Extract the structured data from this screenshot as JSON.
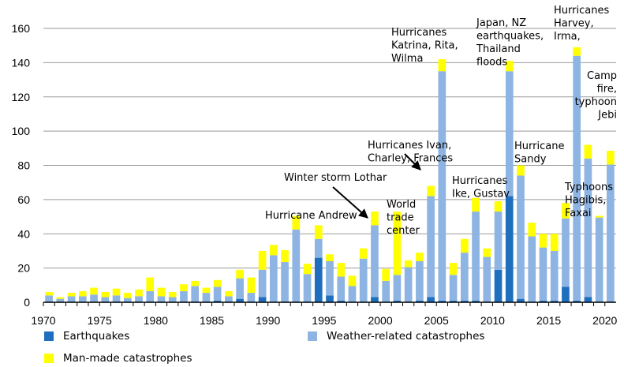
{
  "chart_data": {
    "type": "bar",
    "stacked": true,
    "x": [
      1970,
      1971,
      1972,
      1973,
      1974,
      1975,
      1976,
      1977,
      1978,
      1979,
      1980,
      1981,
      1982,
      1983,
      1984,
      1985,
      1986,
      1987,
      1988,
      1989,
      1990,
      1991,
      1992,
      1993,
      1994,
      1995,
      1996,
      1997,
      1998,
      1999,
      2000,
      2001,
      2002,
      2003,
      2004,
      2005,
      2006,
      2007,
      2008,
      2009,
      2010,
      2011,
      2012,
      2013,
      2014,
      2015,
      2016,
      2017,
      2018,
      2019,
      2020
    ],
    "x_ticks": [
      "1970",
      "1975",
      "1980",
      "1985",
      "1990",
      "1995",
      "2000",
      "2005",
      "2010",
      "2015",
      "2020"
    ],
    "y_ticks": [
      "0",
      "20",
      "40",
      "60",
      "80",
      "100",
      "120",
      "140",
      "160"
    ],
    "ylim": [
      0,
      160
    ],
    "grid": "horizontal",
    "series": [
      {
        "name": "Earthquakes",
        "color": "#1f6fbf",
        "values": [
          0.5,
          0.5,
          0.5,
          0.5,
          0.5,
          0.5,
          0.5,
          0.5,
          0.5,
          0.5,
          0.5,
          0.5,
          0.5,
          0.5,
          0.5,
          1,
          0.5,
          2,
          0.5,
          3,
          0.5,
          0.5,
          0.5,
          0.5,
          26,
          4,
          1,
          0.5,
          0.5,
          3,
          0.5,
          1,
          0.5,
          1,
          3,
          1,
          1,
          1,
          1,
          0.5,
          19,
          62,
          2,
          0.5,
          1,
          1,
          9,
          1,
          3,
          0.5,
          0.5
        ]
      },
      {
        "name": "Weather-related catastrophes",
        "color": "#8db4e2",
        "values": [
          3.5,
          1.5,
          3,
          3,
          4,
          2.5,
          3.5,
          2,
          3,
          6,
          3,
          2.5,
          6,
          9,
          5,
          8,
          3,
          12,
          5,
          16,
          27,
          23,
          42,
          16,
          11,
          20,
          14,
          9,
          25,
          42,
          12,
          15,
          20,
          23,
          59,
          134,
          15,
          28,
          52,
          26,
          34,
          73,
          72,
          38,
          31,
          29,
          40,
          143,
          81,
          49,
          80
        ]
      },
      {
        "name": "Man-made catastrophes",
        "color": "#ffff00",
        "values": [
          2,
          1,
          2,
          3,
          4,
          3,
          4,
          3,
          4,
          8,
          5,
          3,
          4,
          3,
          3,
          4,
          3,
          5,
          9,
          11,
          6,
          7,
          8,
          6,
          8,
          4,
          8,
          6,
          6,
          8,
          7,
          37,
          4,
          5,
          6,
          7,
          7,
          8,
          8,
          5,
          6,
          6,
          6,
          8,
          8,
          10,
          9,
          5,
          8,
          1,
          8
        ]
      }
    ],
    "annotations": [
      {
        "lines": [
          "Hurricane Andrew"
        ]
      },
      {
        "lines": [
          "Winter storm Lothar"
        ]
      },
      {
        "lines": [
          "World",
          "trade",
          "center"
        ]
      },
      {
        "lines": [
          "Hurricanes Ivan,",
          "Charley, Frances"
        ]
      },
      {
        "lines": [
          "Hurricanes",
          "Katrina, Rita,",
          "Wilma"
        ]
      },
      {
        "lines": [
          "Hurricanes",
          "Ike, Gustav"
        ]
      },
      {
        "lines": [
          "Japan, NZ",
          "earthquakes,",
          "Thailand",
          "floods"
        ]
      },
      {
        "lines": [
          "Hurricane",
          "Sandy"
        ]
      },
      {
        "lines": [
          "Hurricanes",
          "Harvey,",
          "Irma,"
        ]
      },
      {
        "lines": [
          "Camp",
          "fire,",
          "typhoon",
          "Jebi"
        ]
      },
      {
        "lines": [
          "Typhoons",
          "Hagibis,",
          "Faxai"
        ]
      }
    ]
  }
}
